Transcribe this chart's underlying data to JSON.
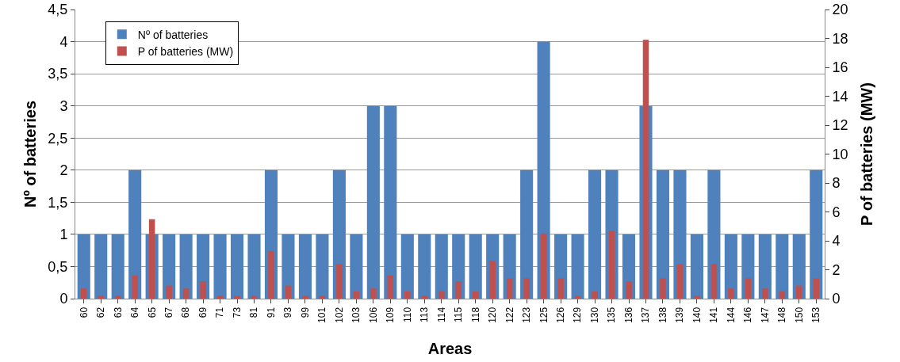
{
  "chart_data": {
    "type": "bar",
    "xlabel": "Areas",
    "ylabel": "Nº of batteries",
    "y2label": "P of batteries (MW)",
    "categories": [
      "60",
      "62",
      "63",
      "64",
      "65",
      "67",
      "68",
      "69",
      "71",
      "73",
      "81",
      "91",
      "93",
      "99",
      "101",
      "102",
      "103",
      "106",
      "109",
      "110",
      "113",
      "114",
      "115",
      "118",
      "120",
      "122",
      "123",
      "125",
      "126",
      "129",
      "130",
      "135",
      "136",
      "137",
      "138",
      "139",
      "140",
      "141",
      "144",
      "146",
      "147",
      "148",
      "150",
      "153"
    ],
    "series": [
      {
        "name": "Nº of batteries",
        "color": "#4f81bd",
        "values": [
          1,
          1,
          1,
          2,
          1,
          1,
          1,
          1,
          1,
          1,
          1,
          2,
          1,
          1,
          1,
          2,
          1,
          3,
          3,
          1,
          1,
          1,
          1,
          1,
          1,
          1,
          2,
          4,
          1,
          1,
          2,
          2,
          1,
          3,
          2,
          2,
          1,
          2,
          1,
          1,
          1,
          1,
          1,
          2
        ]
      },
      {
        "name": "P of batteries (MW)",
        "color": "#c0504d",
        "axis": "y2",
        "values": [
          0.7,
          0.2,
          0.2,
          1.6,
          5.5,
          0.9,
          0.7,
          1.2,
          0.2,
          0.2,
          0.2,
          3.3,
          0.9,
          0.2,
          0.2,
          2.4,
          0.5,
          0.7,
          1.6,
          0.5,
          0.2,
          0.5,
          1.2,
          0.5,
          2.6,
          1.4,
          1.4,
          4.5,
          1.4,
          0.2,
          0.5,
          4.7,
          1.2,
          17.9,
          1.4,
          2.4,
          0.2,
          2.4,
          0.7,
          1.4,
          0.7,
          0.5,
          0.9,
          1.4
        ]
      }
    ],
    "ylim": [
      0,
      4.5
    ],
    "yticks": [
      0,
      {
        "value": 0.5,
        "label": "0,5"
      },
      1,
      {
        "value": 1.5,
        "label": "1,5"
      },
      2,
      {
        "value": 2.5,
        "label": "2,5"
      },
      3,
      {
        "value": 3.5,
        "label": "3,5"
      },
      4,
      {
        "value": 4.5,
        "label": "4,5"
      }
    ],
    "y2lim": [
      0,
      20
    ],
    "y2ticks": [
      0,
      2,
      4,
      6,
      8,
      10,
      12,
      14,
      16,
      18,
      20
    ],
    "grid": "y",
    "legend": "top left"
  }
}
